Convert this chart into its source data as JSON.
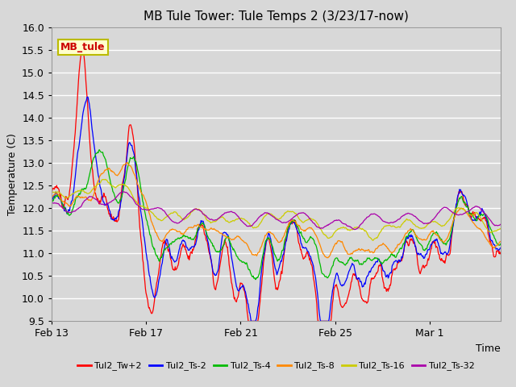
{
  "title": "MB Tule Tower: Tule Temps 2 (3/23/17-now)",
  "xlabel": "Time",
  "ylabel": "Temperature (C)",
  "ylim": [
    9.5,
    16.0
  ],
  "yticks": [
    9.5,
    10.0,
    10.5,
    11.0,
    11.5,
    12.0,
    12.5,
    13.0,
    13.5,
    14.0,
    14.5,
    15.0,
    15.5,
    16.0
  ],
  "xtick_labels": [
    "Feb 13",
    "Feb 17",
    "Feb 21",
    "Feb 25",
    "Mar 1"
  ],
  "xtick_positions": [
    0,
    4,
    8,
    12,
    16
  ],
  "xlim": [
    0,
    19
  ],
  "background_color": "#d8d8d8",
  "grid_color": "#ffffff",
  "series": [
    {
      "label": "Tul2_Tw+2",
      "color": "#ff0000"
    },
    {
      "label": "Tul2_Ts-2",
      "color": "#0000ff"
    },
    {
      "label": "Tul2_Ts-4",
      "color": "#00bb00"
    },
    {
      "label": "Tul2_Ts-8",
      "color": "#ff8800"
    },
    {
      "label": "Tul2_Ts-16",
      "color": "#cccc00"
    },
    {
      "label": "Tul2_Ts-32",
      "color": "#aa00aa"
    }
  ],
  "annotation_text": "MB_tule",
  "annotation_color": "#cc0000",
  "annotation_bg": "#ffffcc",
  "annotation_border": "#bbbb00",
  "title_fontsize": 11,
  "axis_fontsize": 9,
  "legend_fontsize": 8
}
